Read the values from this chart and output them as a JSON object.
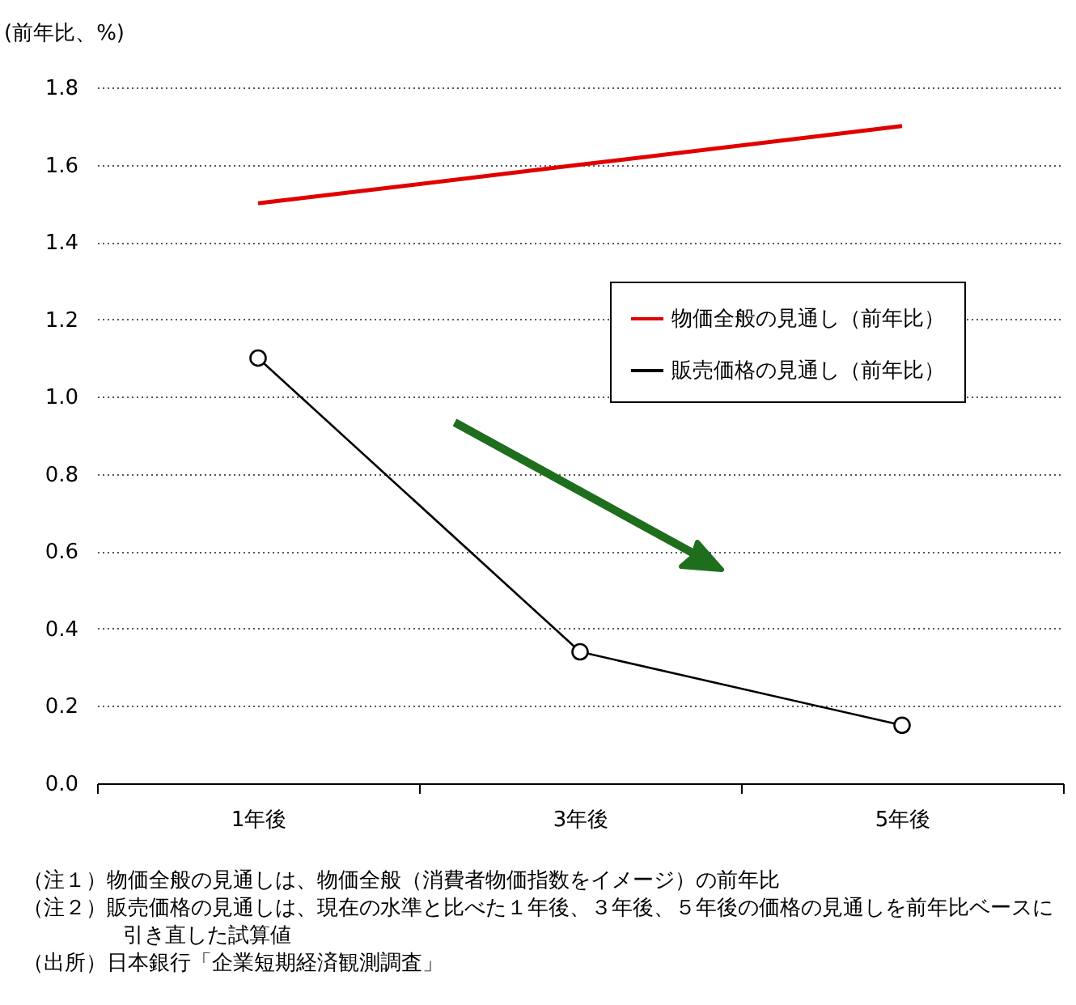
{
  "chart_data": {
    "type": "line",
    "ylabel": "(前年比、%)",
    "categories": [
      "1年後",
      "3年後",
      "5年後"
    ],
    "series": [
      {
        "name": "物価全般の見通し（前年比）",
        "color": "#e00000",
        "values": [
          1.5,
          1.6,
          1.7
        ],
        "marker": "none"
      },
      {
        "name": "販売価格の見通し（前年比）",
        "color": "#000000",
        "values": [
          1.1,
          0.34,
          0.15
        ],
        "marker": "circle"
      }
    ],
    "ylim": [
      0,
      1.8
    ],
    "yticks": [
      {
        "value": 0,
        "label": "0.0"
      },
      {
        "value": 0.2,
        "label": "0.2"
      },
      {
        "value": 0.4,
        "label": "0.4"
      },
      {
        "value": 0.6,
        "label": "0.6"
      },
      {
        "value": 0.8,
        "label": "0.8"
      },
      {
        "value": 1,
        "label": "1.0"
      },
      {
        "value": 1.2,
        "label": "1.2"
      },
      {
        "value": 1.4,
        "label": "1.4"
      },
      {
        "value": 1.6,
        "label": "1.6"
      },
      {
        "value": 1.8,
        "label": "1.8"
      }
    ],
    "grid": "y",
    "legend": "top right",
    "annotations": [
      "（注１）物価全般の見通しは、物価全般（消費者物価指数をイメージ）の前年比",
      "（注２）販売価格の見通しは、現在の水準と比べた１年後、３年後、５年後の価格の見通しを前年比ベースに引き直した試算値",
      "（出所）日本銀行「企業短期経済観測調査」"
    ]
  }
}
